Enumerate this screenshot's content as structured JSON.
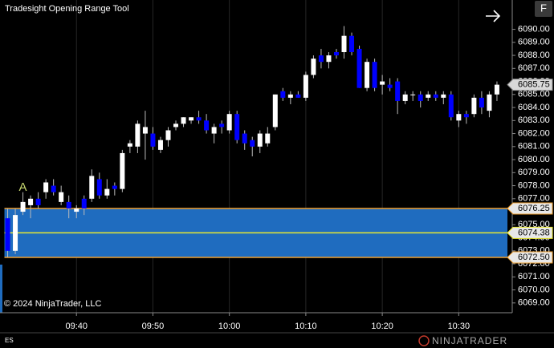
{
  "chart_data": {
    "type": "candlestick",
    "title": "Tradesight Opening Range Tool",
    "copyright": "© 2024 NinjaTrader, LLC",
    "instrument": "ES",
    "button": "F",
    "logo": "NINJATRADER",
    "x": [
      "09:31",
      "09:32",
      "09:33",
      "09:34",
      "09:35",
      "09:36",
      "09:37",
      "09:38",
      "09:39",
      "09:40",
      "09:41",
      "09:42",
      "09:43",
      "09:44",
      "09:45",
      "09:46",
      "09:47",
      "09:48",
      "09:49",
      "09:50",
      "09:51",
      "09:52",
      "09:53",
      "09:54",
      "09:55",
      "09:56",
      "09:57",
      "09:58",
      "09:59",
      "10:00",
      "10:01",
      "10:02",
      "10:03",
      "10:04",
      "10:05",
      "10:06",
      "10:07",
      "10:08",
      "10:09",
      "10:10",
      "10:11",
      "10:12",
      "10:13",
      "10:14",
      "10:15",
      "10:16",
      "10:17",
      "10:18",
      "10:19",
      "10:20",
      "10:21",
      "10:22",
      "10:23",
      "10:24",
      "10:25",
      "10:26",
      "10:27",
      "10:28",
      "10:29",
      "10:30",
      "10:31",
      "10:32",
      "10:33",
      "10:34",
      "10:35"
    ],
    "open": [
      6075.5,
      6073.0,
      6076.0,
      6076.5,
      6077.0,
      6077.5,
      6078.0,
      6076.75,
      6076.75,
      6076.0,
      6077.0,
      6077.0,
      6078.5,
      6077.25,
      6078.0,
      6077.75,
      6081.0,
      6081.0,
      6082.0,
      6082.0,
      6080.75,
      6081.5,
      6082.5,
      6082.75,
      6083.0,
      6083.25,
      6083.0,
      6082.0,
      6082.75,
      6082.25,
      6083.5,
      6082.0,
      6081.5,
      6081.0,
      6081.25,
      6082.5,
      6085.25,
      6084.75,
      6085.0,
      6084.75,
      6086.5,
      6088.0,
      6087.5,
      6088.25,
      6088.25,
      6089.5,
      6088.5,
      6085.5,
      6087.5,
      6085.75,
      6085.75,
      6086.0,
      6084.5,
      6085.0,
      6085.0,
      6084.75,
      6085.0,
      6084.75,
      6085.0,
      6083.0,
      6083.5,
      6083.5,
      6084.75,
      6083.75,
      6085.0
    ],
    "high": [
      6076.25,
      6076.25,
      6077.5,
      6077.25,
      6077.5,
      6078.5,
      6078.5,
      6078.0,
      6077.25,
      6076.5,
      6077.25,
      6079.25,
      6079.0,
      6078.5,
      6078.25,
      6080.75,
      6081.5,
      6083.0,
      6083.75,
      6082.5,
      6081.75,
      6082.5,
      6083.0,
      6083.25,
      6083.25,
      6083.75,
      6083.5,
      6082.75,
      6083.0,
      6083.75,
      6083.75,
      6082.25,
      6081.75,
      6082.25,
      6082.5,
      6085.0,
      6085.5,
      6085.25,
      6085.25,
      6086.75,
      6088.0,
      6088.5,
      6088.25,
      6088.5,
      6090.25,
      6089.75,
      6088.75,
      6087.75,
      6087.75,
      6086.5,
      6086.25,
      6086.25,
      6085.25,
      6085.25,
      6085.25,
      6085.25,
      6085.25,
      6085.25,
      6085.25,
      6083.75,
      6083.75,
      6085.0,
      6085.25,
      6085.25,
      6086.0
    ],
    "low": [
      6072.5,
      6072.75,
      6075.75,
      6075.5,
      6076.25,
      6077.0,
      6077.25,
      6076.5,
      6075.5,
      6075.5,
      6075.75,
      6076.75,
      6077.0,
      6077.0,
      6077.25,
      6077.5,
      6080.5,
      6080.5,
      6080.0,
      6080.75,
      6080.5,
      6081.0,
      6082.25,
      6082.5,
      6082.75,
      6082.75,
      6082.0,
      6081.25,
      6082.0,
      6082.0,
      6081.25,
      6080.75,
      6080.25,
      6080.5,
      6081.0,
      6082.25,
      6084.5,
      6084.25,
      6084.75,
      6084.5,
      6086.25,
      6087.0,
      6087.0,
      6087.75,
      6087.75,
      6088.0,
      6085.5,
      6085.25,
      6085.25,
      6085.0,
      6085.25,
      6083.5,
      6084.25,
      6084.5,
      6084.0,
      6084.5,
      6084.5,
      6084.25,
      6083.0,
      6082.5,
      6082.75,
      6083.25,
      6083.5,
      6083.25,
      6084.5
    ],
    "close": [
      6073.0,
      6075.75,
      6076.75,
      6077.0,
      6076.5,
      6078.25,
      6077.5,
      6077.5,
      6076.25,
      6076.25,
      6076.25,
      6078.75,
      6077.25,
      6077.75,
      6077.75,
      6080.5,
      6081.25,
      6082.75,
      6082.5,
      6081.0,
      6081.5,
      6082.25,
      6082.75,
      6083.25,
      6083.25,
      6083.0,
      6082.25,
      6082.5,
      6082.5,
      6083.5,
      6081.5,
      6081.25,
      6081.0,
      6082.0,
      6082.0,
      6085.0,
      6084.75,
      6085.0,
      6084.75,
      6086.5,
      6087.75,
      6087.5,
      6088.0,
      6088.0,
      6089.5,
      6088.25,
      6085.5,
      6087.5,
      6085.5,
      6086.0,
      6085.5,
      6084.5,
      6085.0,
      6085.0,
      6084.5,
      6085.0,
      6084.75,
      6085.0,
      6083.25,
      6083.5,
      6083.25,
      6084.75,
      6084.0,
      6085.0,
      6085.75
    ],
    "up_color": "#ffffff",
    "down_color": "#0000ff",
    "xlim": [
      "09:30",
      "10:37"
    ],
    "xticks": [
      "09:40",
      "09:50",
      "10:00",
      "10:10",
      "10:20",
      "10:30"
    ],
    "xgrid": true,
    "ylim": [
      6068.25,
      6092.25
    ],
    "yticks": [
      {
        "value": 6069,
        "label": "6069.00"
      },
      {
        "value": 6070,
        "label": "6070.00"
      },
      {
        "value": 6071,
        "label": "6071.00"
      },
      {
        "value": 6072,
        "label": "6072.00"
      },
      {
        "value": 6073,
        "label": "6073.00"
      },
      {
        "value": 6074,
        "label": "6074.00"
      },
      {
        "value": 6075,
        "label": "6075.00"
      },
      {
        "value": 6076,
        "label": "6076.00"
      },
      {
        "value": 6077,
        "label": "6077.00"
      },
      {
        "value": 6078,
        "label": "6078.00"
      },
      {
        "value": 6079,
        "label": "6079.00"
      },
      {
        "value": 6080,
        "label": "6080.00"
      },
      {
        "value": 6081,
        "label": "6081.00"
      },
      {
        "value": 6082,
        "label": "6082.00"
      },
      {
        "value": 6083,
        "label": "6083.00"
      },
      {
        "value": 6084,
        "label": "6084.00"
      },
      {
        "value": 6085,
        "label": "6085.00"
      },
      {
        "value": 6086,
        "label": "6086.00"
      },
      {
        "value": 6087,
        "label": "6087.00"
      },
      {
        "value": 6088,
        "label": "6088.00"
      },
      {
        "value": 6089,
        "label": "6089.00"
      },
      {
        "value": 6090,
        "label": "6090.00"
      }
    ],
    "opening_range": {
      "high": 6076.25,
      "mid": 6074.38,
      "low": {
        "value": 6072.5,
        "label": "6072.50"
      },
      "fill": "#1f6cbf",
      "edge_color": "#f0a030",
      "mid_color": "#e8e830",
      "marker": "A",
      "marker_color": "#c8d870"
    },
    "last_price": 6085.75
  }
}
